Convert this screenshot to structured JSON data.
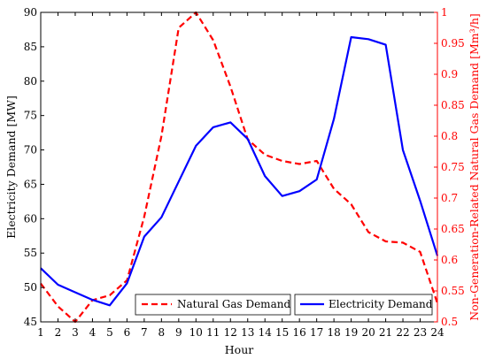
{
  "chart_data": {
    "type": "line",
    "xlabel": "Hour",
    "ylabel_left": "Electricity Demand [MW]",
    "ylabel_right": "Non-Generation-Related Natural Gas Demand [Mm³/h]",
    "x": [
      1,
      2,
      3,
      4,
      5,
      6,
      7,
      8,
      9,
      10,
      11,
      12,
      13,
      14,
      15,
      16,
      17,
      18,
      19,
      20,
      21,
      22,
      23,
      24
    ],
    "x_ticks": [
      "1",
      "2",
      "3",
      "4",
      "5",
      "6",
      "7",
      "8",
      "9",
      "10",
      "11",
      "12",
      "13",
      "14",
      "15",
      "16",
      "17",
      "18",
      "19",
      "20",
      "21",
      "22",
      "23",
      "24"
    ],
    "xlim": [
      1,
      24
    ],
    "ylim_left": [
      45,
      90
    ],
    "ylim_right": [
      0.5,
      1
    ],
    "y_ticks_left": [
      "45",
      "50",
      "55",
      "60",
      "65",
      "70",
      "75",
      "80",
      "85",
      "90"
    ],
    "y_ticks_right": [
      "0.5",
      "0.55",
      "0.6",
      "0.65",
      "0.7",
      "0.75",
      "0.8",
      "0.85",
      "0.9",
      "0.95",
      "1"
    ],
    "grid": false,
    "legend_placement": "bottom-center",
    "series": [
      {
        "name": "Natural Gas Demand",
        "axis": "right",
        "color": "#ff0000",
        "style": "dashed",
        "values": [
          0.562,
          0.525,
          0.5,
          0.535,
          0.543,
          0.567,
          0.67,
          0.8,
          0.975,
          1.0,
          0.955,
          0.88,
          0.795,
          0.77,
          0.76,
          0.755,
          0.76,
          0.715,
          0.69,
          0.645,
          0.63,
          0.628,
          0.613,
          0.53
        ]
      },
      {
        "name": "Electricity Demand",
        "axis": "left",
        "color": "#0000ff",
        "style": "solid",
        "values": [
          52.8,
          50.4,
          49.3,
          48.2,
          47.4,
          50.6,
          57.4,
          60.2,
          65.4,
          70.6,
          73.3,
          74.0,
          71.6,
          66.2,
          63.3,
          64.0,
          65.7,
          74.5,
          86.4,
          86.1,
          85.3,
          70.0,
          62.6,
          54.6
        ]
      }
    ]
  },
  "legend": {
    "gas_label": "Natural Gas Demand",
    "elec_label": "Electricity Demand"
  }
}
